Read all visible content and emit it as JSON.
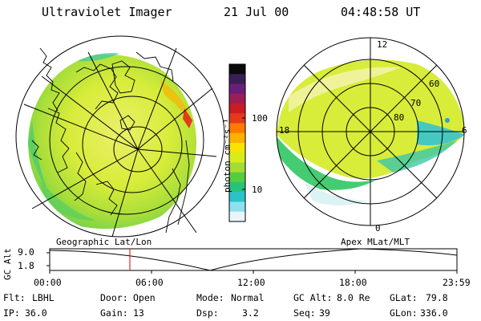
{
  "header": {
    "title": "Ultraviolet Imager",
    "date": "21 Jul 00",
    "time": "04:48:58 UT"
  },
  "colorbar": {
    "unit_label": "photon cm⁻²s⁻¹",
    "tick_labels": [
      "100",
      "10"
    ],
    "colors": [
      "#0a0a0a",
      "#3b1e57",
      "#6a1f7a",
      "#9b1f55",
      "#c81d25",
      "#e33b1a",
      "#ff7a00",
      "#ffb000",
      "#f8e400",
      "#d6ec1d",
      "#a5dc33",
      "#56cc41",
      "#25c47a",
      "#2cc2c9",
      "#8fe0ef",
      "#e8f6fb"
    ]
  },
  "left_panel": {
    "label": "Geographic Lat/Lon",
    "view": "geographic map with auroral imager overlay"
  },
  "right_panel": {
    "label": "Apex MLat/MLT",
    "mlt_labels": [
      "12",
      "18",
      "6",
      "0"
    ],
    "lat_labels": [
      "60",
      "70",
      "80"
    ]
  },
  "altitude_plot": {
    "ylabel": "GC Alt",
    "ytick_labels": [
      "9.0",
      "1.8"
    ],
    "xtick_labels": [
      "00:00",
      "06:00",
      "12:00",
      "18:00",
      "23:59"
    ],
    "marker_color": "#e00000",
    "marker_time": "04:48"
  },
  "footer": {
    "row1": [
      {
        "label": "Flt:",
        "value": "LBHL"
      },
      {
        "label": "Door:",
        "value": "Open"
      },
      {
        "label": "Mode:",
        "value": "Normal"
      },
      {
        "label": "GC Alt:",
        "value": "8.0 Re"
      },
      {
        "label": "GLat:",
        "value": "79.8"
      }
    ],
    "row2": [
      {
        "label": "IP:",
        "value": "36.0"
      },
      {
        "label": "Gain:",
        "value": "13"
      },
      {
        "label": "Dsp:",
        "value": "3.2"
      },
      {
        "label": "Seq:",
        "value": "39"
      },
      {
        "label": "GLon:",
        "value": "336.0"
      }
    ]
  }
}
